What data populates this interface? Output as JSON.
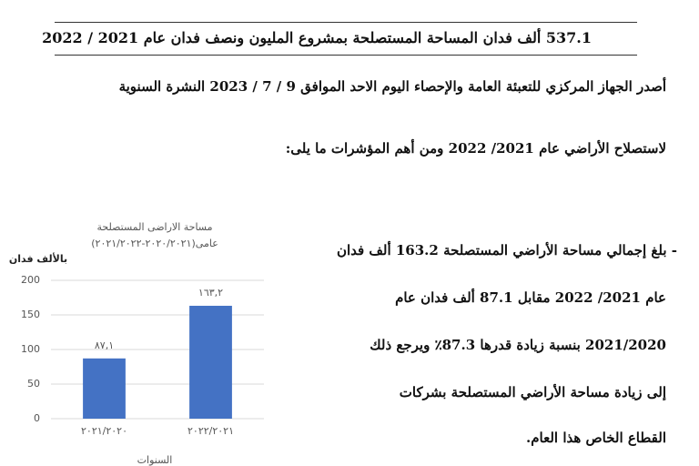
{
  "header": {
    "title": "537.1 ألف فدان المساحة المستصلحة بمشروع المليون ونصف فدان عام 2021 / 2022"
  },
  "intro": [
    "أصدر الجهاز المركزي للتعبئة العامة والإحصاء اليوم الاحد الموافق 9 / 7 / 2023 النشرة السنوية",
    "لاستصلاح الأراضي عام 2021/ 2022 ومن أهم المؤشرات ما يلى:"
  ],
  "bullet": [
    "- بلغ إجمالي مساحة الأراضي المستصلحة 163.2 ألف فدان",
    "عام 2021/ 2022 مقابل 87.1 ألف فدان عام",
    "2021/2020 بنسبة زيادة قدرها 87.3٪ ويرجع ذلك",
    "إلى زيادة مساحة الأراضي المستصلحة بشركات",
    "القطاع الخاص هذا العام."
  ],
  "chart_data": {
    "type": "bar",
    "title": "مساحة الاراضى المستصلحة",
    "subtitle": "عامى(٢٠٢٠/٢٠٢١-٢٠٢١/٢٠٢٢)",
    "y_label": "بالألف فدان",
    "x_label": "السنوات",
    "categories": [
      "٢٠٢١/٢٠٢٠",
      "٢٠٢٢/٢٠٢١"
    ],
    "values": [
      87.1,
      163.2
    ],
    "value_labels": [
      "٨٧,١",
      "١٦٣,٢"
    ],
    "color": "#4472c4",
    "ylim": [
      0,
      200
    ],
    "yticks": [
      0,
      50,
      100,
      150,
      200
    ],
    "grid": true
  }
}
